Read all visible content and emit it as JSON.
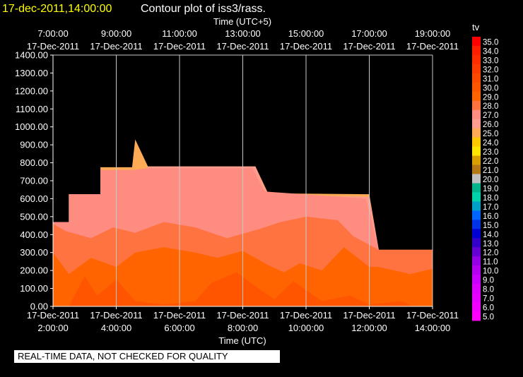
{
  "chart_data": {
    "type": "heatmap",
    "title_time": "17-dec-2011,14:00:00",
    "title_text": "Contour plot of iss3/rass.",
    "top_axis_label": "Time (UTC+5)",
    "bottom_axis_label": "Time (UTC)",
    "ylim": [
      0,
      1400
    ],
    "yticks": [
      "0.00",
      "100.00",
      "200.00",
      "300.00",
      "400.00",
      "500.00",
      "600.00",
      "700.00",
      "800.00",
      "900.00",
      "1000.00",
      "1100.00",
      "1200.00",
      "1300.00",
      "1400.00"
    ],
    "x_range_utc_hours": [
      2,
      14
    ],
    "bottom_ticks": [
      {
        "date": "17-Dec-2011",
        "time": "2:00:00"
      },
      {
        "date": "17-Dec-2011",
        "time": "4:00:00"
      },
      {
        "date": "17-Dec-2011",
        "time": "6:00:00"
      },
      {
        "date": "17-Dec-2011",
        "time": "8:00:00"
      },
      {
        "date": "17-Dec-2011",
        "time": "10:00:00"
      },
      {
        "date": "17-Dec-2011",
        "time": "12:00:00"
      },
      {
        "date": "17-Dec-2011",
        "time": "14:00:00"
      }
    ],
    "top_ticks": [
      {
        "time": "7:00:00",
        "date": "17-Dec-2011"
      },
      {
        "time": "9:00:00",
        "date": "17-Dec-2011"
      },
      {
        "time": "11:00:00",
        "date": "17-Dec-2011"
      },
      {
        "time": "13:00:00",
        "date": "17-Dec-2011"
      },
      {
        "time": "15:00:00",
        "date": "17-Dec-2011"
      },
      {
        "time": "17:00:00",
        "date": "17-Dec-2011"
      },
      {
        "time": "19:00:00",
        "date": "17-Dec-2011"
      }
    ],
    "grid": true,
    "colorbar": {
      "label": "tv",
      "levels": [
        "35.0",
        "34.0",
        "33.0",
        "32.0",
        "31.0",
        "30.0",
        "29.0",
        "28.0",
        "27.0",
        "26.0",
        "25.0",
        "24.0",
        "23.0",
        "22.0",
        "21.0",
        "20.0",
        "19.0",
        "18.0",
        "17.0",
        "16.0",
        "15.0",
        "14.0",
        "13.0",
        "12.0",
        "11.0",
        "10.0",
        "9.0",
        "8.0",
        "7.0",
        "6.0",
        "5.0"
      ],
      "colors": [
        "#ff0000",
        "#ff1e00",
        "#ff2d00",
        "#ff3c00",
        "#ff4800",
        "#ff5500",
        "#ff6400",
        "#ff7340",
        "#ff8c80",
        "#ff9c90",
        "#ffaa55",
        "#ffc800",
        "#ffe600",
        "#d7a000",
        "#b47814",
        "#c0c0c0",
        "#00b48c",
        "#00d2aa",
        "#00a0c8",
        "#0064ff",
        "#0032e6",
        "#0000d2",
        "#3200c8",
        "#6400d2",
        "#9600e6",
        "#b400f0",
        "#c800ff",
        "#dc00ff",
        "#e600ff",
        "#f000ff",
        "#ff00ff"
      ]
    },
    "field_regions": [
      {
        "level": "25.0",
        "color": "#ffaa55",
        "points": [
          [
            2,
            0
          ],
          [
            2,
            470
          ],
          [
            2.5,
            470
          ],
          [
            2.5,
            625
          ],
          [
            3.5,
            625
          ],
          [
            3.5,
            775
          ],
          [
            4.5,
            775
          ],
          [
            4.6,
            930
          ],
          [
            5,
            780
          ],
          [
            8.4,
            780
          ],
          [
            8.8,
            630
          ],
          [
            12,
            625
          ],
          [
            12.3,
            315
          ],
          [
            14,
            315
          ],
          [
            14,
            0
          ]
        ]
      },
      {
        "level": "26.0",
        "color": "#ff9c90",
        "points": [
          [
            2,
            0
          ],
          [
            2,
            470
          ],
          [
            2.5,
            470
          ],
          [
            2.5,
            625
          ],
          [
            3.5,
            625
          ],
          [
            3.5,
            530
          ],
          [
            4.5,
            640
          ],
          [
            5,
            780
          ],
          [
            8.4,
            780
          ],
          [
            8.8,
            620
          ],
          [
            12,
            610
          ],
          [
            12.3,
            315
          ],
          [
            14,
            315
          ],
          [
            14,
            0
          ]
        ]
      },
      {
        "level": "27.0",
        "color": "#ff8c80",
        "points": [
          [
            2,
            0
          ],
          [
            2,
            470
          ],
          [
            2.5,
            470
          ],
          [
            2.5,
            625
          ],
          [
            3.5,
            625
          ],
          [
            3.5,
            760
          ],
          [
            4.5,
            760
          ],
          [
            5,
            770
          ],
          [
            8.3,
            770
          ],
          [
            8.7,
            640
          ],
          [
            11.9,
            600
          ],
          [
            12.3,
            315
          ],
          [
            14,
            315
          ],
          [
            14,
            0
          ]
        ]
      },
      {
        "level": "28.0",
        "color": "#ff7340",
        "points": [
          [
            2,
            0
          ],
          [
            2,
            460
          ],
          [
            2.4,
            420
          ],
          [
            3.2,
            380
          ],
          [
            3.9,
            440
          ],
          [
            4.6,
            410
          ],
          [
            5.5,
            470
          ],
          [
            6.5,
            440
          ],
          [
            7.5,
            380
          ],
          [
            8.5,
            430
          ],
          [
            9.2,
            470
          ],
          [
            10,
            500
          ],
          [
            11,
            480
          ],
          [
            11.5,
            390
          ],
          [
            12.3,
            315
          ],
          [
            14,
            315
          ],
          [
            14,
            0
          ]
        ]
      },
      {
        "level": "29.0",
        "color": "#ff6400",
        "points": [
          [
            2,
            0
          ],
          [
            2,
            300
          ],
          [
            2.5,
            180
          ],
          [
            3.2,
            270
          ],
          [
            4,
            220
          ],
          [
            4.6,
            300
          ],
          [
            5.5,
            330
          ],
          [
            6.5,
            300
          ],
          [
            7.2,
            270
          ],
          [
            8,
            310
          ],
          [
            8.8,
            230
          ],
          [
            9.3,
            190
          ],
          [
            9.8,
            240
          ],
          [
            10.5,
            200
          ],
          [
            11.2,
            330
          ],
          [
            12,
            220
          ],
          [
            12.3,
            220
          ],
          [
            13.3,
            180
          ],
          [
            14,
            210
          ],
          [
            14,
            0
          ]
        ]
      },
      {
        "level": "30.0",
        "color": "#ff5500",
        "points": [
          [
            2.5,
            0
          ],
          [
            3,
            170
          ],
          [
            3.4,
            60
          ],
          [
            4,
            150
          ],
          [
            4.6,
            30
          ],
          [
            5.5,
            10
          ],
          [
            6.5,
            30
          ],
          [
            7,
            130
          ],
          [
            7.8,
            190
          ],
          [
            8.5,
            100
          ],
          [
            9,
            40
          ],
          [
            9.6,
            140
          ],
          [
            10.5,
            30
          ],
          [
            11.4,
            60
          ],
          [
            12,
            10
          ],
          [
            13,
            30
          ],
          [
            13.4,
            0
          ]
        ]
      }
    ],
    "note": "REAL-TIME DATA, NOT CHECKED FOR QUALITY"
  }
}
